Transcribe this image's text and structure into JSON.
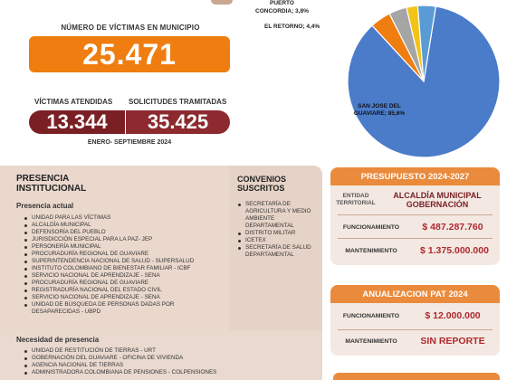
{
  "stats": {
    "victims_label": "NÚMERO DE VÍCTIMAS EN MUNICIPIO",
    "victims_value": "25.471",
    "attended_label": "VÍCTIMAS ATENDIDAS",
    "attended_value": "13.344",
    "requests_label": "SOLICITUDES TRAMITADAS",
    "requests_value": "35.425",
    "period": "ENERO- SEPTIEMBRE 2024"
  },
  "chart_data": {
    "type": "pie",
    "slices": [
      {
        "label": "SAN JOSE DEL GUAVIARE; 85,6%",
        "value": 85.6,
        "color": "#4a7cc9"
      },
      {
        "label": "EL RETORNO; 4,4%",
        "value": 4.4,
        "color": "#ef7d10"
      },
      {
        "label": "CONCORDIA; 3,8%",
        "value": 3.8,
        "color": "#a5a5a5"
      },
      {
        "label": "",
        "value": 2.4,
        "color": "#f2c418"
      },
      {
        "label": "",
        "value": 3.8,
        "color": "#5b9bd5"
      }
    ],
    "partial_label": "PUERTO"
  },
  "presence": {
    "title": "PRESENCIA INSTITUCIONAL",
    "current_label": "Presencia actual",
    "current_items": [
      "UNIDAD PARA LAS VÍCTIMAS",
      "ALCALDÍA MUNICIPAL",
      "DEFENSORÍA DEL PUEBLO",
      "JURISDICCIÓN ESPECIAL PARA LA PAZ- JEP",
      "PERSONERÍA MUNICIPAL",
      "PROCURADURÍA REGIONAL DE GUAVIARE",
      "SUPERINTENDENCIA NACIONAL DE SALUD - SUPERSALUD",
      "INSTITUTO COLOMBIANO DE BIENESTAR FAMILIAR - ICBF",
      "SERVICIO NACIONAL DE APRENDIZAJE - SENA",
      "PROCURADURÍA REGIONAL DE GUAVIARE",
      "REGISTRADURÍA NACIONAL DEL ESTADO CIVIL",
      "SERVICIO NACIONAL DE APRENDIZAJE - SENA",
      "UNIDAD DE BÚSQUEDA DE PERSONAS DADAS POR DESAPARECIDAS - UBPD"
    ],
    "agreements_title": "CONVENIOS SUSCRITOS",
    "agreements": [
      "SECRETARÍA DE AGRICULTURA Y MEDIO AMBIENTE DEPARTAMENTAL",
      "DISTRITO MILITAR",
      "ICETEX",
      "SECRETARÍA DE SALUD DEPARTAMENTAL"
    ],
    "need_label": "Necesidad de presencia",
    "need_items": [
      "UNIDAD DE RESTITUCIÓN DE TIERRAS - URT",
      "GOBERNACIÓN DEL GUAVIARE - OFICINA DE VIVIENDA",
      "AGENCIA NACIONAL DE TIERRAS",
      "ADMINISTRADORA COLOMBIANA DE PENSIONES - COLPENSIONES"
    ]
  },
  "budget": {
    "title": "PRESUPUESTO 2024-2027",
    "entity_label": "ENTIDAD TERRITORIAL",
    "entity_value": "ALCALDÍA MUNICIPAL GOBERNACIÓN",
    "rows": [
      {
        "label": "FUNCIONAMIENTO",
        "value": "$ 487.287.760"
      },
      {
        "label": "MANTENIMIENTO",
        "value": "$ 1.375.000.000"
      }
    ]
  },
  "pat": {
    "title": "ANUALIZACION PAT 2024",
    "rows": [
      {
        "label": "FUNCIONAMIENTO",
        "value": "$ 12.000.000"
      },
      {
        "label": "MANTENIMIENTO",
        "value": "SIN REPORTE"
      }
    ]
  }
}
